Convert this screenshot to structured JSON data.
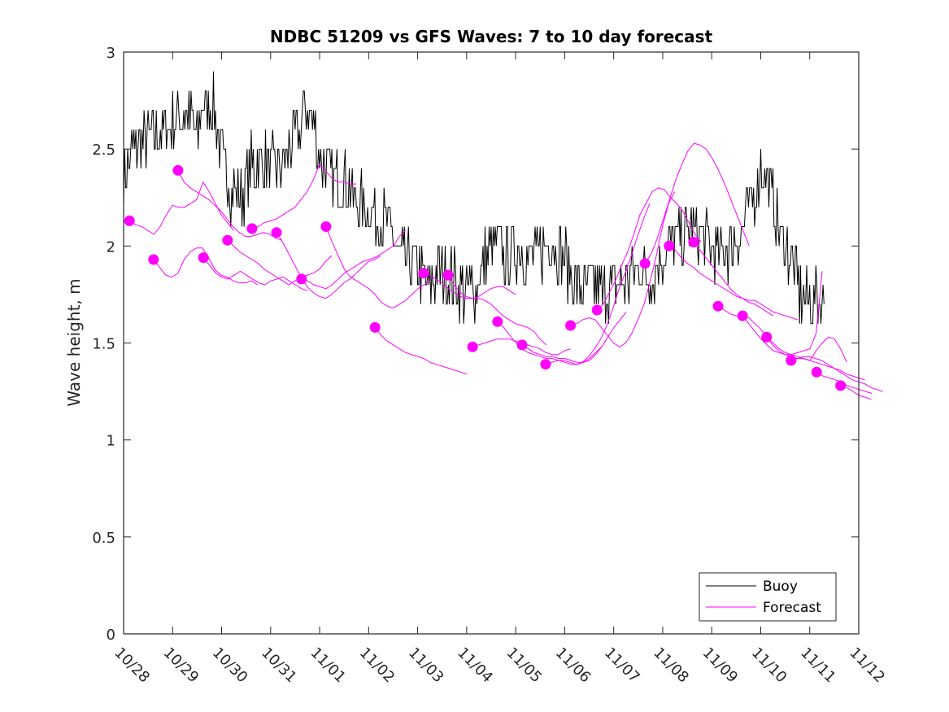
{
  "chart_data": {
    "type": "line",
    "title": "NDBC 51209 vs GFS Waves: 7 to 10 day forecast",
    "xlabel": "",
    "ylabel": "Wave height, m",
    "x_unit": "days since 10/28",
    "xlim": [
      0,
      15
    ],
    "ylim": [
      0,
      3
    ],
    "x_ticks": [
      {
        "value": 0,
        "label": "10/28"
      },
      {
        "value": 1,
        "label": "10/29"
      },
      {
        "value": 2,
        "label": "10/30"
      },
      {
        "value": 3,
        "label": "10/31"
      },
      {
        "value": 4,
        "label": "11/01"
      },
      {
        "value": 5,
        "label": "11/02"
      },
      {
        "value": 6,
        "label": "11/03"
      },
      {
        "value": 7,
        "label": "11/04"
      },
      {
        "value": 8,
        "label": "11/05"
      },
      {
        "value": 9,
        "label": "11/06"
      },
      {
        "value": 10,
        "label": "11/07"
      },
      {
        "value": 11,
        "label": "11/08"
      },
      {
        "value": 12,
        "label": "11/09"
      },
      {
        "value": 13,
        "label": "11/10"
      },
      {
        "value": 14,
        "label": "11/11"
      },
      {
        "value": 15,
        "label": "11/12"
      }
    ],
    "y_ticks": [
      {
        "value": 0,
        "label": "0"
      },
      {
        "value": 0.5,
        "label": "0.5"
      },
      {
        "value": 1,
        "label": "1"
      },
      {
        "value": 1.5,
        "label": "1.5"
      },
      {
        "value": 2,
        "label": "2"
      },
      {
        "value": 2.5,
        "label": "2.5"
      },
      {
        "value": 3,
        "label": "3"
      }
    ],
    "grid": false,
    "legend": {
      "placement": "bottom-right",
      "entries": [
        {
          "label": "Buoy",
          "color": "#000000"
        },
        {
          "label": "Forecast",
          "color": "#ff00ff"
        }
      ]
    },
    "buoy": {
      "name": "Buoy",
      "color": "#000000",
      "x_start": 0,
      "x_end": 14.3,
      "anchors": [
        [
          0,
          2.35
        ],
        [
          0.2,
          2.5
        ],
        [
          0.5,
          2.55
        ],
        [
          0.8,
          2.6
        ],
        [
          1.0,
          2.65
        ],
        [
          1.3,
          2.7
        ],
        [
          1.5,
          2.55
        ],
        [
          1.6,
          2.7
        ],
        [
          1.8,
          2.75
        ],
        [
          2.0,
          2.45
        ],
        [
          2.2,
          2.3
        ],
        [
          2.4,
          2.25
        ],
        [
          2.6,
          2.4
        ],
        [
          2.8,
          2.45
        ],
        [
          3.0,
          2.4
        ],
        [
          3.2,
          2.4
        ],
        [
          3.4,
          2.5
        ],
        [
          3.6,
          2.6
        ],
        [
          3.7,
          2.7
        ],
        [
          3.9,
          2.6
        ],
        [
          4.0,
          2.45
        ],
        [
          4.2,
          2.35
        ],
        [
          4.4,
          2.35
        ],
        [
          4.6,
          2.3
        ],
        [
          4.8,
          2.2
        ],
        [
          5.0,
          2.2
        ],
        [
          5.2,
          2.15
        ],
        [
          5.4,
          2.1
        ],
        [
          5.6,
          1.95
        ],
        [
          5.8,
          1.9
        ],
        [
          6.0,
          1.9
        ],
        [
          6.2,
          1.8
        ],
        [
          6.4,
          1.85
        ],
        [
          6.6,
          1.85
        ],
        [
          6.8,
          1.8
        ],
        [
          7.0,
          1.75
        ],
        [
          7.2,
          1.8
        ],
        [
          7.4,
          1.95
        ],
        [
          7.6,
          2.0
        ],
        [
          7.8,
          1.95
        ],
        [
          8.0,
          2.0
        ],
        [
          8.2,
          1.95
        ],
        [
          8.4,
          1.95
        ],
        [
          8.6,
          2.0
        ],
        [
          8.8,
          2.0
        ],
        [
          9.0,
          1.95
        ],
        [
          9.2,
          1.8
        ],
        [
          9.4,
          1.75
        ],
        [
          9.6,
          1.8
        ],
        [
          9.8,
          1.75
        ],
        [
          10.0,
          1.8
        ],
        [
          10.2,
          1.8
        ],
        [
          10.4,
          1.85
        ],
        [
          10.6,
          1.9
        ],
        [
          10.8,
          1.85
        ],
        [
          11.0,
          1.95
        ],
        [
          11.2,
          2.0
        ],
        [
          11.4,
          2.05
        ],
        [
          11.6,
          2.1
        ],
        [
          11.8,
          2.05
        ],
        [
          12.0,
          2.0
        ],
        [
          12.2,
          1.95
        ],
        [
          12.4,
          2.0
        ],
        [
          12.6,
          2.05
        ],
        [
          12.8,
          2.2
        ],
        [
          13.0,
          2.4
        ],
        [
          13.2,
          2.3
        ],
        [
          13.4,
          2.05
        ],
        [
          13.6,
          1.95
        ],
        [
          13.8,
          1.75
        ],
        [
          14.0,
          1.7
        ],
        [
          14.15,
          1.75
        ],
        [
          14.3,
          1.7
        ]
      ],
      "noise_amplitude_m": 0.1
    },
    "forecasts": [
      {
        "x0": 0.12,
        "step": 0.125,
        "values": [
          2.13,
          2.11,
          2.1,
          2.08,
          2.06,
          2.1,
          2.16,
          2.21,
          2.2,
          2.2,
          2.22,
          2.24,
          2.33,
          2.28,
          2.22,
          2.16,
          2.12,
          2.08
        ]
      },
      {
        "x0": 0.61,
        "step": 0.125,
        "values": [
          1.93,
          1.89,
          1.85,
          1.84,
          1.86,
          1.93,
          1.97,
          1.99,
          1.99,
          1.94,
          1.88,
          1.85,
          1.84,
          1.82,
          1.81,
          1.81,
          1.82,
          1.8
        ]
      },
      {
        "x0": 1.11,
        "step": 0.125,
        "values": [
          2.39,
          2.33,
          2.3,
          2.28,
          2.26,
          2.24,
          2.21,
          2.18,
          2.14,
          2.1,
          2.07,
          2.05,
          2.05,
          2.06,
          2.07,
          2.06,
          2.04,
          2.03
        ]
      },
      {
        "x0": 1.63,
        "step": 0.125,
        "values": [
          1.94,
          1.9,
          1.86,
          1.84,
          1.83,
          1.85,
          1.87,
          1.85,
          1.83,
          1.81,
          1.8,
          1.82,
          1.83,
          1.84,
          1.82,
          1.8,
          1.78,
          1.77
        ]
      },
      {
        "x0": 2.12,
        "step": 0.125,
        "values": [
          2.03,
          2.0,
          1.97,
          1.95,
          1.93,
          1.91,
          1.88,
          1.86,
          1.84,
          1.82,
          1.8,
          1.82,
          1.84,
          1.85,
          1.86,
          1.88,
          1.92,
          1.95
        ]
      },
      {
        "x0": 2.62,
        "step": 0.125,
        "values": [
          2.09,
          2.1,
          2.12,
          2.13,
          2.14,
          2.16,
          2.18,
          2.2,
          2.24,
          2.28,
          2.34,
          2.42,
          2.39,
          2.35,
          2.33,
          2.33,
          2.32,
          2.32
        ]
      },
      {
        "x0": 3.12,
        "step": 0.125,
        "values": [
          2.07,
          2.02,
          1.96,
          1.9,
          1.84,
          1.79,
          1.76,
          1.74,
          1.73,
          1.75,
          1.78,
          1.81,
          1.83,
          1.86,
          1.89,
          1.92,
          1.93,
          1.95
        ]
      },
      {
        "x0": 3.63,
        "step": 0.125,
        "values": [
          1.83,
          1.82,
          1.8,
          1.79,
          1.78,
          1.8,
          1.83,
          1.86,
          1.88,
          1.9,
          1.92,
          1.93,
          1.94,
          1.96,
          1.98,
          2.0,
          2.05,
          2.08
        ]
      },
      {
        "x0": 4.13,
        "step": 0.125,
        "values": [
          2.1,
          2.02,
          1.95,
          1.88,
          1.84,
          1.82,
          1.8,
          1.78,
          1.75,
          1.71,
          1.69,
          1.68,
          1.7,
          1.72,
          1.75,
          1.78,
          1.8,
          1.82
        ]
      },
      {
        "x0": 5.13,
        "step": 0.125,
        "values": [
          1.58,
          1.54,
          1.51,
          1.49,
          1.47,
          1.45,
          1.44,
          1.43,
          1.42,
          1.4,
          1.39,
          1.38,
          1.37,
          1.36,
          1.35,
          1.34
        ]
      },
      {
        "x0": 6.12,
        "step": 0.125,
        "values": [
          1.86,
          1.85,
          1.83,
          1.81,
          1.78,
          1.76,
          1.74,
          1.73,
          1.73,
          1.74,
          1.76,
          1.78,
          1.79,
          1.79,
          1.77,
          1.75
        ]
      },
      {
        "x0": 6.62,
        "step": 0.125,
        "values": [
          1.85,
          1.8,
          1.76,
          1.74,
          1.73,
          1.73,
          1.72,
          1.7,
          1.67,
          1.64,
          1.62,
          1.6,
          1.59,
          1.58,
          1.56,
          1.52,
          1.49
        ]
      },
      {
        "x0": 7.12,
        "step": 0.125,
        "values": [
          1.48,
          1.49,
          1.5,
          1.51,
          1.52,
          1.52,
          1.52,
          1.51,
          1.5,
          1.49,
          1.48,
          1.47,
          1.45,
          1.44,
          1.44,
          1.46,
          1.47
        ]
      },
      {
        "x0": 7.63,
        "step": 0.125,
        "values": [
          1.61,
          1.58,
          1.54,
          1.5,
          1.47,
          1.45,
          1.44,
          1.43,
          1.42,
          1.42,
          1.41,
          1.4,
          1.39,
          1.39,
          1.4,
          1.42,
          1.45,
          1.48
        ]
      },
      {
        "x0": 8.13,
        "step": 0.125,
        "values": [
          1.49,
          1.47,
          1.45,
          1.44,
          1.43,
          1.43,
          1.42,
          1.42,
          1.41,
          1.4,
          1.4,
          1.41,
          1.44,
          1.48,
          1.53,
          1.58,
          1.62,
          1.66
        ]
      },
      {
        "x0": 8.61,
        "step": 0.125,
        "values": [
          1.39,
          1.4,
          1.41,
          1.41,
          1.4,
          1.39,
          1.4,
          1.43,
          1.47,
          1.52,
          1.59,
          1.68,
          1.78,
          1.86,
          1.95,
          2.05,
          2.14,
          2.22
        ]
      },
      {
        "x0": 9.12,
        "step": 0.125,
        "values": [
          1.59,
          1.6,
          1.62,
          1.63,
          1.62,
          1.58,
          1.54,
          1.5,
          1.48,
          1.5,
          1.55,
          1.62,
          1.7,
          1.82,
          1.95,
          2.1,
          2.22,
          2.28
        ]
      },
      {
        "x0": 9.66,
        "step": 0.125,
        "values": [
          1.67,
          1.7,
          1.76,
          1.82,
          1.9,
          1.97,
          2.06,
          2.16,
          2.22,
          2.28,
          2.3,
          2.29,
          2.25,
          2.22,
          2.18,
          2.12,
          2.06,
          2.02
        ]
      },
      {
        "x0": 10.64,
        "step": 0.125,
        "values": [
          1.91,
          1.96,
          2.04,
          2.14,
          2.24,
          2.34,
          2.42,
          2.49,
          2.53,
          2.52,
          2.5,
          2.45,
          2.39,
          2.32,
          2.24,
          2.16,
          2.08,
          2.0
        ]
      },
      {
        "x0": 11.13,
        "step": 0.125,
        "values": [
          2.0,
          1.98,
          1.94,
          1.91,
          1.89,
          1.86,
          1.84,
          1.82,
          1.8,
          1.78,
          1.76,
          1.74,
          1.73,
          1.71,
          1.7,
          1.68,
          1.66,
          1.64
        ]
      },
      {
        "x0": 11.63,
        "step": 0.125,
        "values": [
          2.02,
          1.98,
          1.94,
          1.9,
          1.86,
          1.82,
          1.78,
          1.75,
          1.73,
          1.72,
          1.72,
          1.7,
          1.68,
          1.66,
          1.65,
          1.64,
          1.63,
          1.62
        ]
      },
      {
        "x0": 12.13,
        "step": 0.125,
        "values": [
          1.69,
          1.67,
          1.65,
          1.64,
          1.64,
          1.63,
          1.6,
          1.57,
          1.53,
          1.5,
          1.47,
          1.45,
          1.44,
          1.45,
          1.46,
          1.47,
          1.55,
          1.87
        ]
      },
      {
        "x0": 12.63,
        "step": 0.125,
        "values": [
          1.64,
          1.6,
          1.56,
          1.52,
          1.49,
          1.46,
          1.45,
          1.44,
          1.44,
          1.43,
          1.42,
          1.41,
          1.46,
          1.5,
          1.53,
          1.52,
          1.47,
          1.4
        ]
      },
      {
        "x0": 13.12,
        "step": 0.125,
        "values": [
          1.53,
          1.49,
          1.46,
          1.44,
          1.43,
          1.42,
          1.42,
          1.41,
          1.4,
          1.39,
          1.38,
          1.37,
          1.36,
          1.34,
          1.33,
          1.32,
          1.31
        ]
      },
      {
        "x0": 13.62,
        "step": 0.125,
        "values": [
          1.41,
          1.42,
          1.43,
          1.43,
          1.42,
          1.41,
          1.39,
          1.37,
          1.35,
          1.33,
          1.31,
          1.3,
          1.29,
          1.27,
          1.26,
          1.25
        ]
      },
      {
        "x0": 14.14,
        "step": 0.125,
        "values": [
          1.35,
          1.33,
          1.32,
          1.31,
          1.3,
          1.28,
          1.27,
          1.26,
          1.25,
          1.24
        ]
      },
      {
        "x0": 14.63,
        "step": 0.125,
        "values": [
          1.28,
          1.27,
          1.25,
          1.23,
          1.22,
          1.21
        ]
      }
    ],
    "forecast_color": "#ff00ff"
  }
}
